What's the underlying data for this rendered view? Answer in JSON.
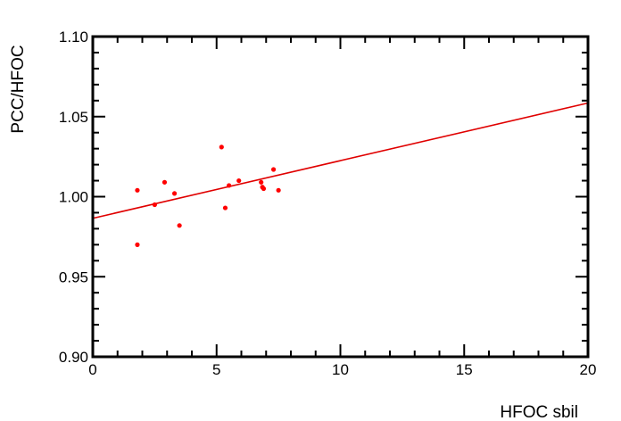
{
  "chart_data": {
    "type": "scatter",
    "title": "",
    "xlabel": "HFOC  sbil",
    "ylabel": "PCC/HFOC",
    "xlim": [
      0,
      20
    ],
    "ylim": [
      0.9,
      1.1
    ],
    "x_ticks": [
      0,
      5,
      10,
      15,
      20
    ],
    "x_tick_labels": [
      "0",
      "5",
      "10",
      "15",
      "20"
    ],
    "y_ticks": [
      0.9,
      0.95,
      1.0,
      1.05,
      1.1
    ],
    "y_tick_labels": [
      "0.90",
      "0.95",
      "1.00",
      "1.05",
      "1.10"
    ],
    "grid": false,
    "colors": {
      "points": "#ff0000",
      "fit_line": "#e00000",
      "axes": "#000000"
    },
    "series": [
      {
        "points": [
          [
            1.8,
            1.004
          ],
          [
            1.8,
            0.97
          ],
          [
            2.5,
            0.995
          ],
          [
            2.9,
            1.009
          ],
          [
            3.3,
            1.002
          ],
          [
            3.5,
            0.982
          ],
          [
            5.2,
            1.031
          ],
          [
            5.35,
            0.993
          ],
          [
            5.5,
            1.007
          ],
          [
            5.9,
            1.01
          ],
          [
            6.8,
            1.009
          ],
          [
            6.85,
            1.006
          ],
          [
            6.9,
            1.005
          ],
          [
            7.3,
            1.017
          ],
          [
            7.5,
            1.004
          ]
        ]
      }
    ],
    "fit_line": {
      "x": [
        0,
        20
      ],
      "y": [
        0.9865,
        1.0585
      ]
    }
  }
}
